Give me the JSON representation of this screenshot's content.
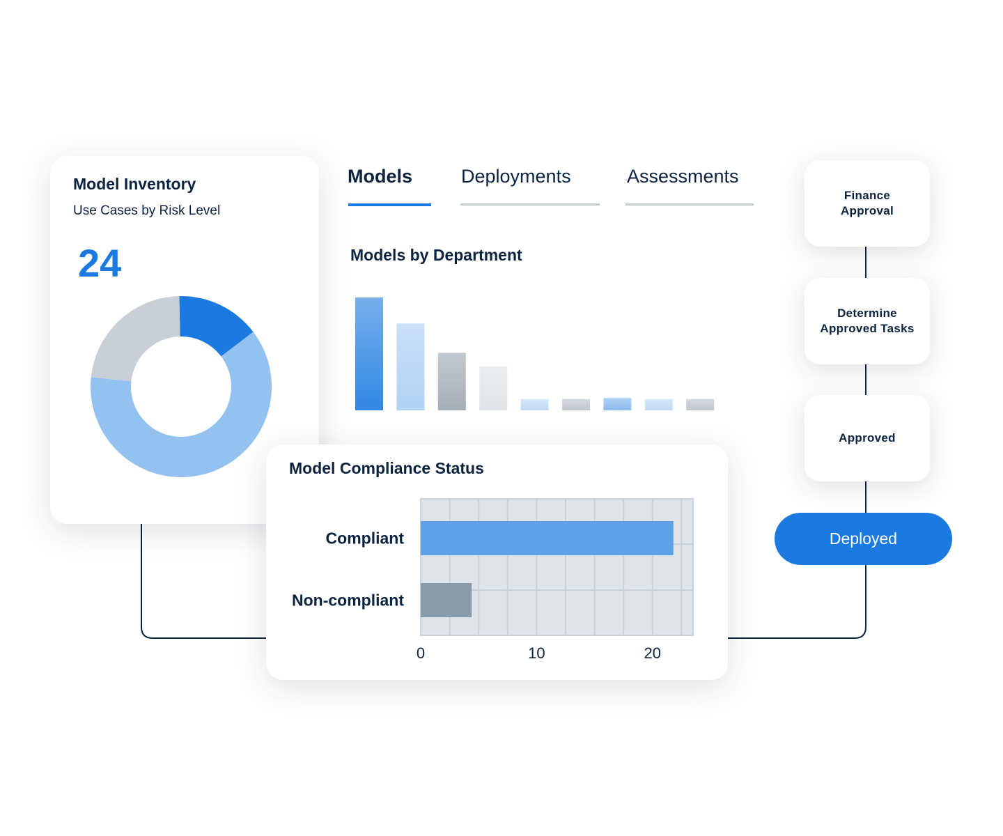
{
  "inventory": {
    "title": "Model Inventory",
    "subtitle": "Use Cases by Risk Level",
    "count": "24"
  },
  "tabs": [
    {
      "label": "Models",
      "active": true
    },
    {
      "label": "Deployments",
      "active": false
    },
    {
      "label": "Assessments",
      "active": false
    }
  ],
  "department_chart_title": "Models by Department",
  "workflow": {
    "steps": [
      {
        "label": "Finance\nApproval"
      },
      {
        "label": "Determine\nApproved Tasks"
      },
      {
        "label": "Approved"
      }
    ],
    "final_step_label": "Deployed"
  },
  "compliance": {
    "title": "Model Compliance Status"
  },
  "colors": {
    "accent": "#1a7ae0",
    "light_blue": "#94c2f0",
    "gray": "#c8cfd6",
    "dark_text": "#0c2340",
    "bar_compliant": "#5ea3e8",
    "bar_noncompliant": "#8a9baa",
    "plot_bg": "#dfe4e9"
  },
  "chart_data": [
    {
      "type": "pie",
      "variant": "donut",
      "values": [
        15,
        62,
        23
      ],
      "colors": [
        "#1a7ae0",
        "#94c2f0",
        "#c8cfd6"
      ]
    },
    {
      "type": "bar",
      "values": [
        10,
        7.7,
        5.1,
        3.9,
        1,
        1,
        1.1,
        1,
        1
      ],
      "colors": [
        "#1a7ae0",
        "#a8ccf4",
        "#9aa5b0",
        "#dde1e6",
        "#b8d6f6",
        "#b8c0c8",
        "#7fb2ec",
        "#b8d6f6",
        "#b8c0c8"
      ],
      "ylim": [
        0,
        10
      ],
      "axes_visible": false
    },
    {
      "type": "bar",
      "orientation": "horizontal",
      "categories": [
        "Compliant",
        "Non-compliant"
      ],
      "values": [
        21.8,
        4.4
      ],
      "xlim": [
        0,
        23.5
      ],
      "xticks": [
        0,
        10,
        20
      ],
      "grid": true
    }
  ]
}
